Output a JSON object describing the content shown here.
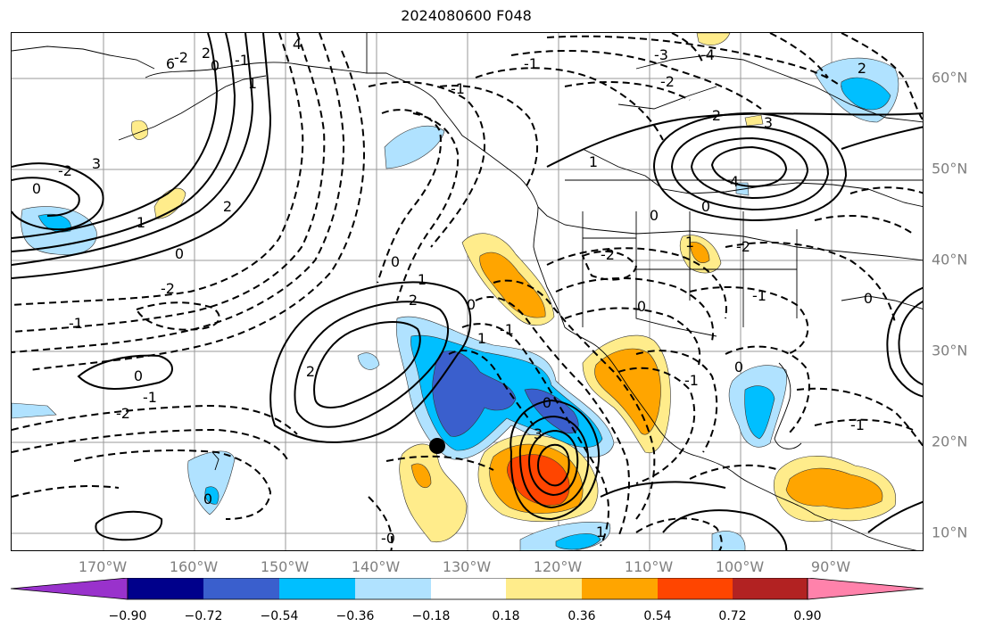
{
  "title": "2024080600 F048",
  "lon_labels": [
    "170°W",
    "160°W",
    "150°W",
    "140°W",
    "130°W",
    "120°W",
    "110°W",
    "100°W",
    "90°W"
  ],
  "lat_labels": [
    "60°N",
    "50°N",
    "40°N",
    "30°N",
    "20°N",
    "10°N"
  ],
  "colorbar": {
    "ticks": [
      "−0.90",
      "−0.72",
      "−0.54",
      "−0.36",
      "−0.18",
      "0.18",
      "0.36",
      "0.54",
      "0.72",
      "0.90"
    ],
    "colors": [
      "#9932cc",
      "#00008b",
      "#3a5fcd",
      "#00bfff",
      "#b0e2ff",
      "#ffffff",
      "#ffec8b",
      "#ffa500",
      "#ff4500",
      "#b22222",
      "#ff82ab"
    ]
  },
  "contour_labels": [
    "-2",
    "-1",
    "0",
    "1",
    "2",
    "3",
    "4",
    "6",
    "-4",
    "-3",
    "2",
    "-2",
    "0",
    "1",
    "-1",
    "-2",
    "0",
    "2",
    "1",
    "-1",
    "0",
    "-2",
    "-1",
    "2",
    "0",
    "1",
    "-1",
    "0",
    "-2",
    "3",
    "0",
    "1",
    "-1",
    "-2",
    "0",
    "1",
    "2",
    "4",
    "3",
    "2",
    "0",
    "-2",
    "0",
    "-1",
    "0",
    "-1",
    "-0",
    "-1",
    "1",
    "0",
    "0"
  ],
  "marker": "storm-center"
}
